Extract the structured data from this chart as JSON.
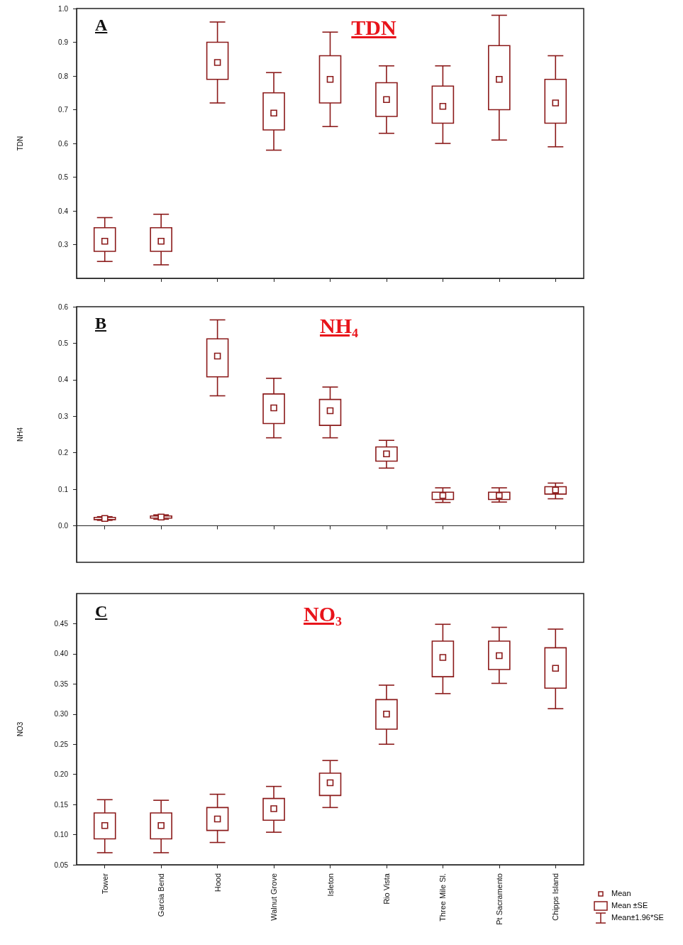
{
  "chart_data": [
    {
      "type": "box",
      "title": "TDN",
      "ylabel": "TDN",
      "annotations": [
        "A"
      ],
      "color": "#8b1a1a",
      "categories": [
        null,
        null,
        null,
        null,
        null,
        null,
        null,
        null,
        null
      ],
      "boxes": [
        {
          "low": 0.25,
          "q1": 0.28,
          "median": 0.31,
          "q3": 0.35,
          "high": 0.38
        },
        {
          "low": 0.24,
          "q1": 0.28,
          "median": 0.31,
          "q3": 0.35,
          "high": 0.39
        },
        {
          "low": 0.72,
          "q1": 0.79,
          "median": 0.84,
          "q3": 0.9,
          "high": 0.96
        },
        {
          "low": 0.58,
          "q1": 0.64,
          "median": 0.69,
          "q3": 0.75,
          "high": 0.81
        },
        {
          "low": 0.65,
          "q1": 0.72,
          "median": 0.79,
          "q3": 0.86,
          "high": 0.93
        },
        {
          "low": 0.63,
          "q1": 0.68,
          "median": 0.73,
          "q3": 0.78,
          "high": 0.83
        },
        {
          "low": 0.6,
          "q1": 0.66,
          "median": 0.71,
          "q3": 0.77,
          "high": 0.83
        },
        {
          "low": 0.61,
          "q1": 0.7,
          "median": 0.79,
          "q3": 0.89,
          "high": 0.98
        },
        {
          "low": 0.59,
          "q1": 0.66,
          "median": 0.72,
          "q3": 0.79,
          "high": 0.86
        }
      ],
      "ylim": [
        0.2,
        1.0
      ],
      "yticks": [
        0.3,
        0.4,
        0.5,
        0.6,
        0.7,
        0.8,
        0.9,
        {
          "value": 1.0,
          "label": "1.0"
        }
      ],
      "tick_labels": "y"
    },
    {
      "type": "box",
      "title": "NH₄",
      "ylabel": "NH4",
      "annotations": [
        "B"
      ],
      "color": "#8b1a1a",
      "categories": [
        null,
        null,
        null,
        null,
        null,
        null,
        null,
        null,
        null
      ],
      "boxes": [
        {
          "low": 0.015,
          "q1": 0.017,
          "median": 0.02,
          "q3": 0.023,
          "high": 0.025
        },
        {
          "low": 0.018,
          "q1": 0.021,
          "median": 0.024,
          "q3": 0.027,
          "high": 0.03
        },
        {
          "low": 0.356,
          "q1": 0.408,
          "median": 0.465,
          "q3": 0.512,
          "high": 0.564
        },
        {
          "low": 0.241,
          "q1": 0.28,
          "median": 0.323,
          "q3": 0.361,
          "high": 0.404
        },
        {
          "low": 0.241,
          "q1": 0.275,
          "median": 0.315,
          "q3": 0.346,
          "high": 0.38
        },
        {
          "low": 0.158,
          "q1": 0.177,
          "median": 0.197,
          "q3": 0.216,
          "high": 0.234
        },
        {
          "low": 0.064,
          "q1": 0.072,
          "median": 0.083,
          "q3": 0.092,
          "high": 0.104
        },
        {
          "low": 0.065,
          "q1": 0.072,
          "median": 0.083,
          "q3": 0.092,
          "high": 0.104
        },
        {
          "low": 0.074,
          "q1": 0.087,
          "median": 0.098,
          "q3": 0.107,
          "high": 0.117
        }
      ],
      "ylim": [
        -0.1,
        0.6
      ],
      "yticks": [
        {
          "value": 0,
          "label": "0.0"
        },
        0.1,
        0.2,
        0.3,
        0.4,
        0.5,
        0.6
      ],
      "tick_labels": "y"
    },
    {
      "type": "box",
      "title": "NO₃",
      "ylabel": "NO3",
      "annotations": [
        "C",
        "Mean",
        "Mean ±SE",
        "Mean±1.96*SE"
      ],
      "color": "#8b1a1a",
      "categories": [
        "Tower",
        "Garcia Bend",
        "Hood",
        "Walnut Grove",
        "Isleton",
        "Rio Vista",
        "Three Mile Sl.",
        "Pt Sacramento",
        "Chipps Island"
      ],
      "boxes": [
        {
          "low": 0.07,
          "q1": 0.093,
          "median": 0.115,
          "q3": 0.136,
          "high": 0.158
        },
        {
          "low": 0.07,
          "q1": 0.093,
          "median": 0.115,
          "q3": 0.136,
          "high": 0.157
        },
        {
          "low": 0.087,
          "q1": 0.107,
          "median": 0.126,
          "q3": 0.145,
          "high": 0.167
        },
        {
          "low": 0.104,
          "q1": 0.124,
          "median": 0.143,
          "q3": 0.16,
          "high": 0.18
        },
        {
          "low": 0.145,
          "q1": 0.165,
          "median": 0.186,
          "q3": 0.202,
          "high": 0.223
        },
        {
          "low": 0.25,
          "q1": 0.275,
          "median": 0.3,
          "q3": 0.324,
          "high": 0.348
        },
        {
          "low": 0.334,
          "q1": 0.362,
          "median": 0.394,
          "q3": 0.421,
          "high": 0.449
        },
        {
          "low": 0.351,
          "q1": 0.374,
          "median": 0.397,
          "q3": 0.421,
          "high": 0.444
        },
        {
          "low": 0.309,
          "q1": 0.343,
          "median": 0.376,
          "q3": 0.41,
          "high": 0.441
        }
      ],
      "ylim": [
        0.05,
        0.5
      ],
      "yticks": [
        0.05,
        {
          "value": 0.1,
          "label": "0.10"
        },
        0.15,
        {
          "value": 0.2,
          "label": "0.20"
        },
        0.25,
        {
          "value": 0.3,
          "label": "0.30"
        },
        0.35,
        {
          "value": 0.4,
          "label": "0.40"
        },
        0.45
      ]
    }
  ]
}
